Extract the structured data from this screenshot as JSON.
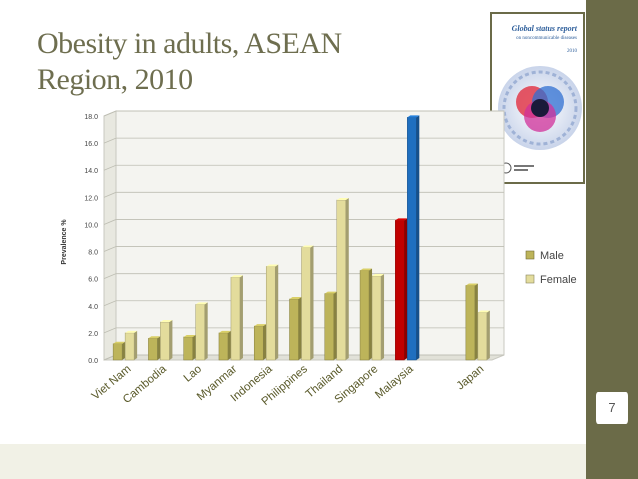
{
  "slide": {
    "title_line1": "Obesity in adults, ASEAN",
    "title_line2": "Region, 2010",
    "page_number": "7"
  },
  "cover": {
    "title": "Global status report",
    "subtitle": "on noncommunicable diseases",
    "year": "2010"
  },
  "colors": {
    "male": "#bdb45a",
    "female": "#e3dc9c",
    "highlight_male": "#c00000",
    "highlight_female": "#1f6fbf",
    "side_bar": "#6b6b48"
  },
  "chart_data": {
    "type": "bar",
    "style": "3d",
    "ylabel": "Prevalence %",
    "xlabel": "",
    "ylim": [
      0,
      18
    ],
    "yticks": [
      "0.0",
      "2.0",
      "4.0",
      "6.0",
      "8.0",
      "10.0",
      "12.0",
      "14.0",
      "16.0",
      "18.0"
    ],
    "categories": [
      "Viet Nam",
      "Cambodia",
      "Lao",
      "Myanmar",
      "Indonesia",
      "Philippines",
      "Thailand",
      "Singapore",
      "Malaysia",
      "",
      "Japan"
    ],
    "series": [
      {
        "name": "Male",
        "values": [
          1.2,
          1.6,
          1.7,
          2.0,
          2.5,
          4.5,
          4.9,
          6.6,
          10.3,
          null,
          5.5
        ]
      },
      {
        "name": "Female",
        "values": [
          2.0,
          2.8,
          4.1,
          6.1,
          6.9,
          8.3,
          11.8,
          6.2,
          17.9,
          null,
          3.5
        ]
      }
    ],
    "highlight_category": "Malaysia",
    "legend_position": "right",
    "grid": true
  }
}
